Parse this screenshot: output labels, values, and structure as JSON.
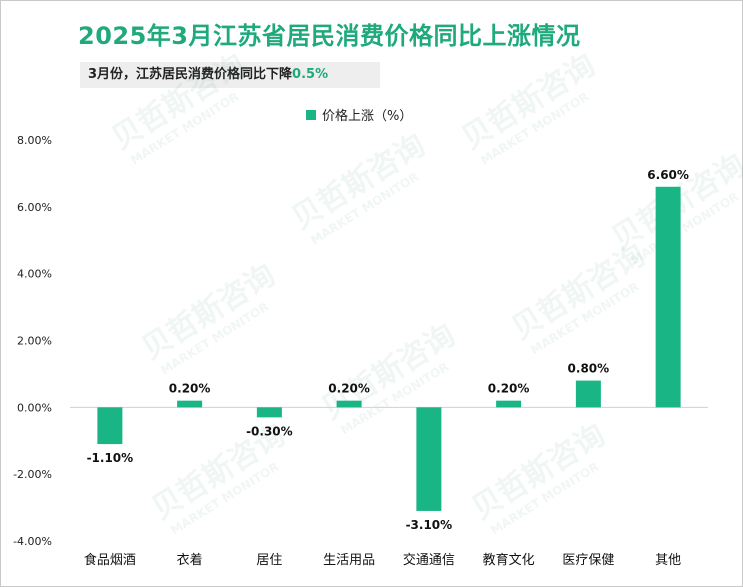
{
  "header": {
    "title": "2025年3月江苏省居民消费价格同比上涨情况",
    "subtitle_text": "3月份，江苏居民消费价格同比下降",
    "subtitle_value": "0.5%"
  },
  "watermark": {
    "text_cn": "贝哲斯咨询",
    "text_en": "MARKET MONITOR"
  },
  "colors": {
    "bar": "#19b585",
    "accent": "#1fa97c"
  },
  "chart_data": {
    "type": "bar",
    "categories": [
      "食品烟酒",
      "衣着",
      "居住",
      "生活用品",
      "交通通信",
      "教育文化",
      "医疗保健",
      "其他"
    ],
    "series": [
      {
        "name": "价格上涨（%）",
        "values": [
          -1.1,
          0.2,
          -0.3,
          0.2,
          -3.1,
          0.2,
          0.8,
          6.6
        ],
        "labels": [
          "-1.10%",
          "0.20%",
          "-0.30%",
          "0.20%",
          "-3.10%",
          "0.20%",
          "0.80%",
          "6.60%"
        ]
      }
    ],
    "ylim": [
      -4,
      8
    ],
    "yticks": [
      8,
      6,
      4,
      2,
      0,
      -2,
      -4
    ],
    "ytick_labels": [
      "8.00%",
      "6.00%",
      "4.00%",
      "2.00%",
      "0.00%",
      "-2.00%",
      "-4.00%"
    ],
    "legend": "top-center",
    "grid": false
  }
}
